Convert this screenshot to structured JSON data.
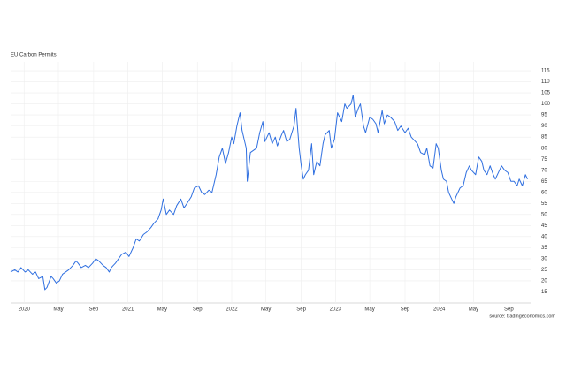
{
  "chart_data": {
    "type": "line",
    "title": "EU Carbon Permits",
    "source": "source: tradingeconomics.com",
    "xlim": [
      2019.87,
      2024.88
    ],
    "xticks": [
      {
        "value": 2020,
        "label": "2020"
      },
      {
        "value": 2020.33,
        "label": "May"
      },
      {
        "value": 2020.67,
        "label": "Sep"
      },
      {
        "value": 2021,
        "label": "2021"
      },
      {
        "value": 2021.33,
        "label": "May"
      },
      {
        "value": 2021.67,
        "label": "Sep"
      },
      {
        "value": 2022,
        "label": "2022"
      },
      {
        "value": 2022.33,
        "label": "May"
      },
      {
        "value": 2022.67,
        "label": "Sep"
      },
      {
        "value": 2023,
        "label": "2023"
      },
      {
        "value": 2023.33,
        "label": "May"
      },
      {
        "value": 2023.67,
        "label": "Sep"
      },
      {
        "value": 2024,
        "label": "2024"
      },
      {
        "value": 2024.33,
        "label": "May"
      },
      {
        "value": 2024.67,
        "label": "Sep"
      }
    ],
    "ylim": [
      10,
      119
    ],
    "yticks": [
      15,
      20,
      25,
      30,
      35,
      40,
      45,
      50,
      55,
      60,
      65,
      70,
      75,
      80,
      85,
      90,
      95,
      100,
      105,
      110,
      115
    ],
    "grid": true,
    "series": [
      {
        "name": "EU Carbon Permits",
        "color": "#2f6fe0",
        "x": [
          2019.87,
          2019.91,
          2019.94,
          2019.97,
          2020.01,
          2020.04,
          2020.08,
          2020.11,
          2020.14,
          2020.18,
          2020.2,
          2020.22,
          2020.26,
          2020.28,
          2020.31,
          2020.34,
          2020.37,
          2020.4,
          2020.43,
          2020.47,
          2020.5,
          2020.52,
          2020.55,
          2020.59,
          2020.62,
          2020.66,
          2020.69,
          2020.72,
          2020.76,
          2020.79,
          2020.82,
          2020.84,
          2020.88,
          2020.91,
          2020.94,
          2020.98,
          2021.01,
          2021.05,
          2021.08,
          2021.11,
          2021.15,
          2021.18,
          2021.22,
          2021.25,
          2021.29,
          2021.32,
          2021.34,
          2021.37,
          2021.4,
          2021.44,
          2021.47,
          2021.51,
          2021.54,
          2021.57,
          2021.61,
          2021.64,
          2021.68,
          2021.71,
          2021.74,
          2021.78,
          2021.81,
          2021.85,
          2021.88,
          2021.91,
          2021.94,
          2021.97,
          2022.0,
          2022.02,
          2022.05,
          2022.08,
          2022.1,
          2022.14,
          2022.15,
          2022.18,
          2022.21,
          2022.24,
          2022.27,
          2022.3,
          2022.32,
          2022.36,
          2022.39,
          2022.42,
          2022.44,
          2022.48,
          2022.5,
          2022.53,
          2022.56,
          2022.6,
          2022.62,
          2022.65,
          2022.67,
          2022.69,
          2022.71,
          2022.74,
          2022.77,
          2022.79,
          2022.82,
          2022.85,
          2022.88,
          2022.9,
          2022.94,
          2022.96,
          2022.99,
          2023.02,
          2023.06,
          2023.09,
          2023.11,
          2023.15,
          2023.17,
          2023.19,
          2023.22,
          2023.24,
          2023.27,
          2023.29,
          2023.33,
          2023.36,
          2023.39,
          2023.41,
          2023.45,
          2023.47,
          2023.5,
          2023.53,
          2023.57,
          2023.6,
          2023.63,
          2023.67,
          2023.7,
          2023.73,
          2023.75,
          2023.79,
          2023.82,
          2023.86,
          2023.88,
          2023.91,
          2023.94,
          2023.97,
          2023.99,
          2024.02,
          2024.04,
          2024.07,
          2024.09,
          2024.12,
          2024.14,
          2024.16,
          2024.2,
          2024.23,
          2024.26,
          2024.29,
          2024.31,
          2024.35,
          2024.38,
          2024.41,
          2024.43,
          2024.46,
          2024.49,
          2024.52,
          2024.54,
          2024.58,
          2024.6,
          2024.63,
          2024.66,
          2024.69,
          2024.72,
          2024.75,
          2024.77,
          2024.8,
          2024.83,
          2024.85
        ],
        "values": [
          24,
          25,
          24,
          26,
          24,
          25,
          23,
          24,
          21,
          22,
          16,
          17,
          22,
          21,
          19,
          20,
          23,
          24,
          25,
          27,
          29,
          28,
          26,
          27,
          26,
          28,
          30,
          29,
          27,
          26,
          24,
          26,
          28,
          30,
          32,
          33,
          31,
          35,
          39,
          38,
          41,
          42,
          44,
          46,
          48,
          52,
          57,
          50,
          52,
          50,
          54,
          57,
          53,
          55,
          58,
          62,
          63,
          60,
          59,
          61,
          60,
          68,
          76,
          80,
          73,
          78,
          85,
          82,
          90,
          96,
          88,
          80,
          65,
          78,
          79,
          80,
          87,
          92,
          83,
          87,
          82,
          85,
          81,
          86,
          88,
          83,
          84,
          90,
          98,
          80,
          72,
          66,
          68,
          70,
          82,
          68,
          74,
          72,
          82,
          86,
          88,
          80,
          84,
          96,
          92,
          100,
          98,
          100,
          104,
          94,
          98,
          100,
          90,
          87,
          94,
          93,
          91,
          87,
          97,
          91,
          95,
          94,
          92,
          88,
          90,
          87,
          89,
          85,
          84,
          82,
          78,
          77,
          80,
          72,
          71,
          82,
          80,
          70,
          66,
          65,
          60,
          57,
          55,
          58,
          62,
          63,
          69,
          72,
          70,
          68,
          76,
          74,
          70,
          68,
          72,
          68,
          66,
          70,
          72,
          70,
          69,
          65,
          65,
          63,
          66,
          63,
          68,
          66
        ]
      }
    ]
  }
}
